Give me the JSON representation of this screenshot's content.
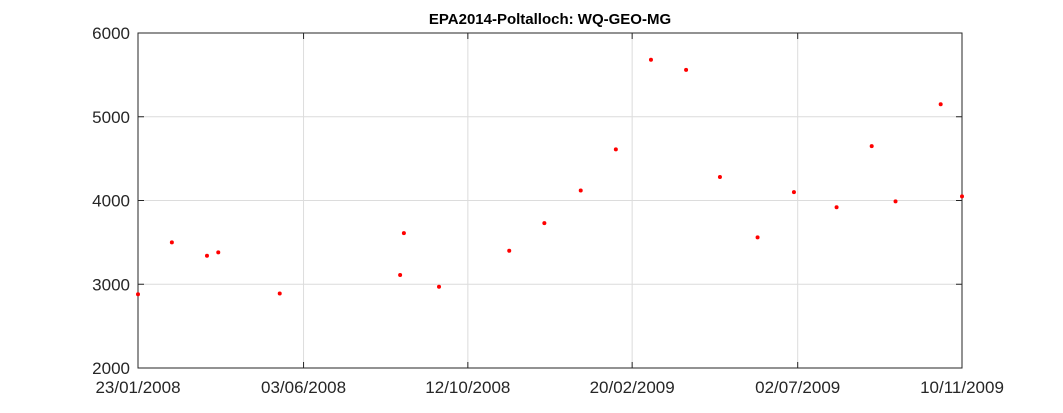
{
  "chart_data": {
    "type": "scatter",
    "title": "EPA2014-Poltalloch: WQ-GEO-MG",
    "xlabel": "",
    "ylabel": "",
    "xlim": [
      "2008-01-23",
      "2009-11-10"
    ],
    "ylim": [
      2000,
      6000
    ],
    "grid": true,
    "marker_color": "#ff0000",
    "x_ticks": [
      "23/01/2008",
      "03/06/2008",
      "12/10/2008",
      "20/02/2009",
      "02/07/2009",
      "10/11/2009"
    ],
    "y_ticks": [
      "2000",
      "3000",
      "4000",
      "5000",
      "6000"
    ],
    "x": [
      "2008-01-23",
      "2008-02-19",
      "2008-03-18",
      "2008-03-27",
      "2008-05-15",
      "2008-08-19",
      "2008-08-22",
      "2008-09-19",
      "2008-11-14",
      "2008-12-12",
      "2009-01-10",
      "2009-02-07",
      "2009-03-07",
      "2009-04-04",
      "2009-05-01",
      "2009-05-31",
      "2009-06-29",
      "2009-08-02",
      "2009-08-30",
      "2009-09-18",
      "2009-10-24",
      "2009-11-10"
    ],
    "y": [
      2880,
      3500,
      3340,
      3380,
      2890,
      3110,
      3610,
      2970,
      3400,
      3730,
      4120,
      4610,
      5680,
      5560,
      4280,
      3560,
      4100,
      3920,
      4650,
      3990,
      5150,
      4050
    ]
  }
}
